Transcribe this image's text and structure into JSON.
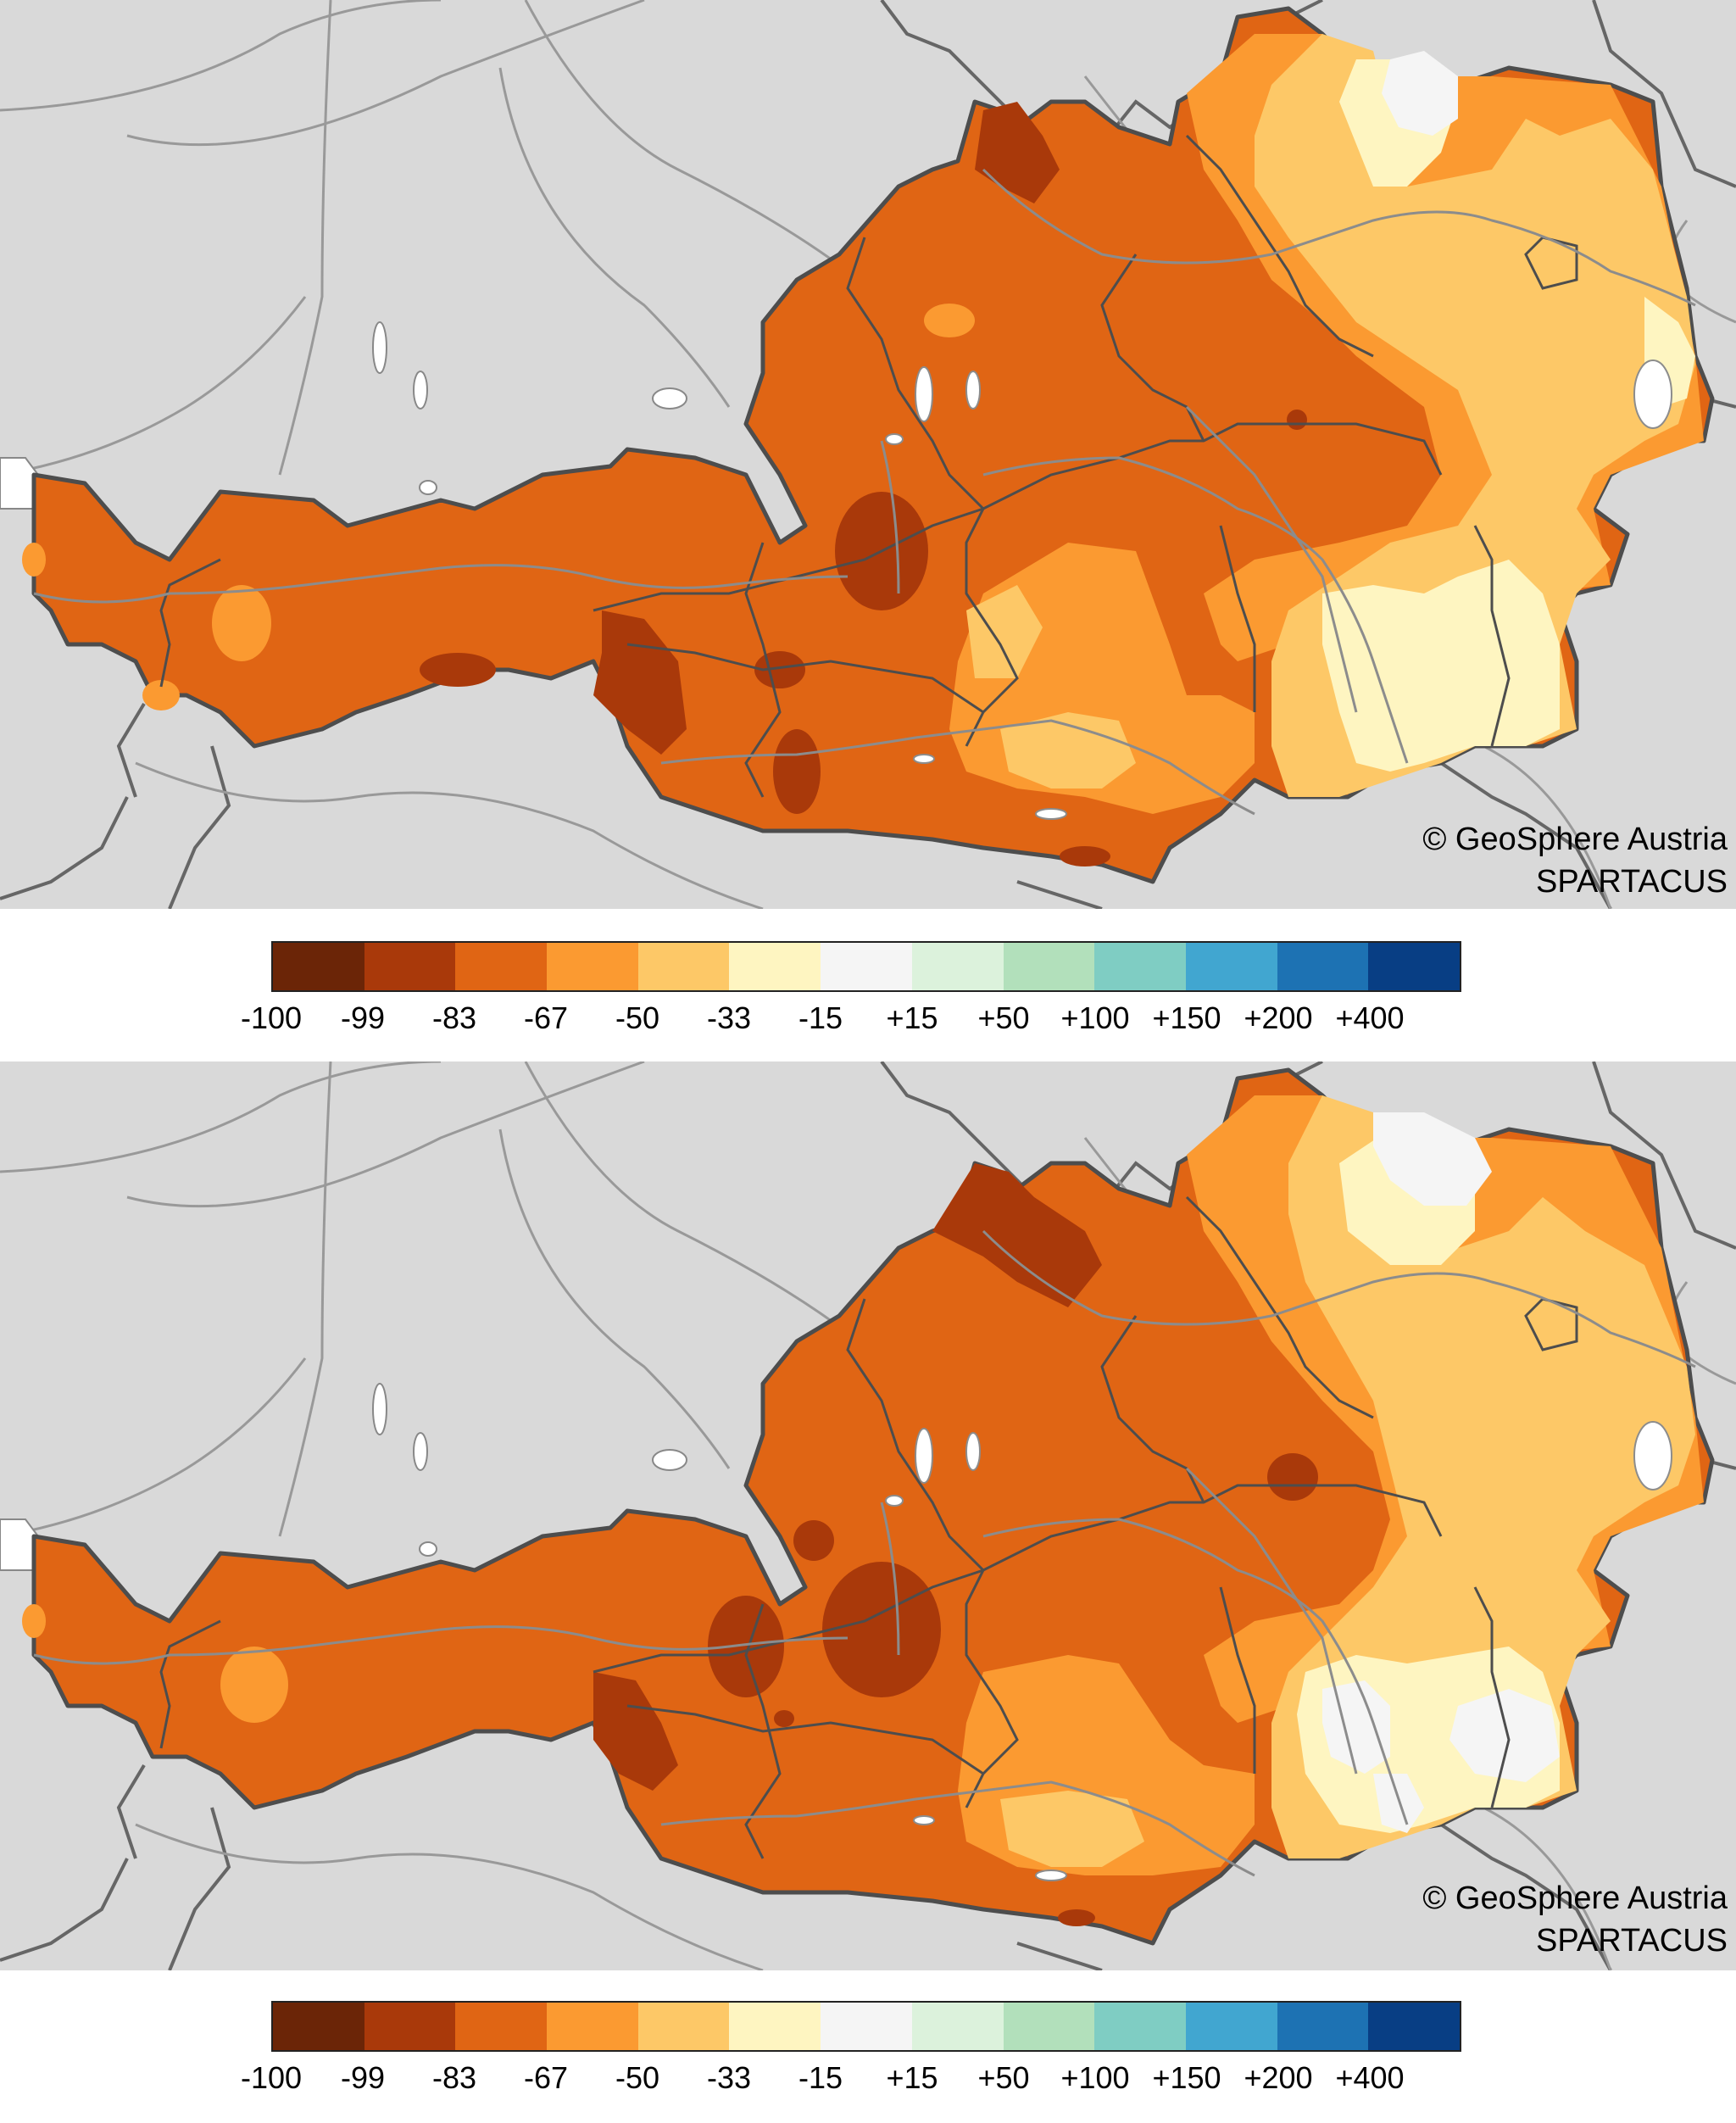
{
  "maps": [
    {
      "credit_line1": "© GeoSphere Austria",
      "credit_line2": "SPARTACUS"
    },
    {
      "credit_line1": "© GeoSphere Austria",
      "credit_line2": "SPARTACUS"
    }
  ],
  "legend": {
    "ticks": [
      "-100",
      "-99",
      "-83",
      "-67",
      "-50",
      "-33",
      "-15",
      "+15",
      "+50",
      "+100",
      "+150",
      "+200",
      "+400"
    ],
    "colors": [
      "#6b2507",
      "#a9390a",
      "#e06514",
      "#fb9a31",
      "#fdc867",
      "#fef5c1",
      "#f5f5f5",
      "#dcf2dc",
      "#b2e0bb",
      "#7fcdc3",
      "#41a6d0",
      "#1d72b3",
      "#083e84"
    ]
  },
  "map_style": {
    "background": "#d9d9d9",
    "land": "#e06514",
    "border": "#4d4d4d",
    "rivers": "#8c8c8c",
    "lakes": "#ffffff"
  }
}
